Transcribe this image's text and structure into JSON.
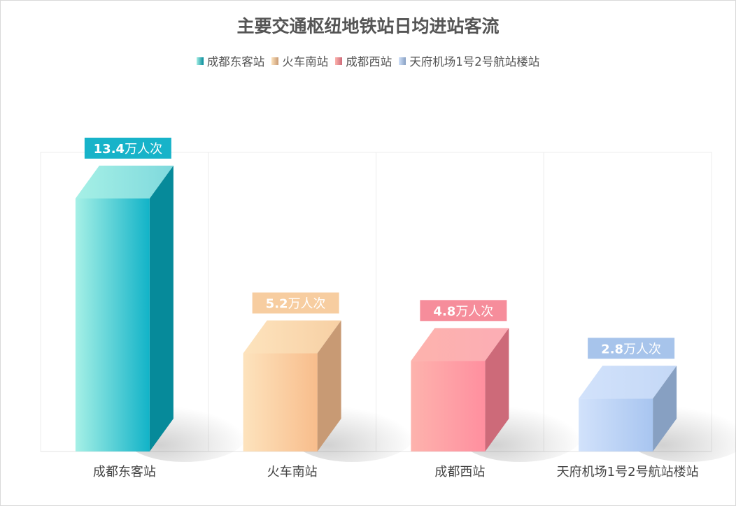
{
  "chart_data": {
    "type": "bar",
    "title": "主要交通枢纽地铁站日均进站客流",
    "categories": [
      "成都东客站",
      "火车南站",
      "成都西站",
      "天府机场1号2号航站楼站"
    ],
    "series": [
      {
        "name": "成都东客站",
        "values": [
          13.4,
          null,
          null,
          null
        ]
      },
      {
        "name": "火车南站",
        "values": [
          null,
          5.2,
          null,
          null
        ]
      },
      {
        "name": "成都西站",
        "values": [
          null,
          null,
          4.8,
          null
        ]
      },
      {
        "name": "天府机场1号2号航站楼站",
        "values": [
          null,
          null,
          null,
          2.8
        ]
      }
    ],
    "values": [
      13.4,
      5.2,
      4.8,
      2.8
    ],
    "value_labels": [
      {
        "number": "13.4",
        "unit": "万人次"
      },
      {
        "number": "5.2",
        "unit": "万人次"
      },
      {
        "number": "4.8",
        "unit": "万人次"
      },
      {
        "number": "2.8",
        "unit": "万人次"
      }
    ],
    "ylim": [
      0,
      13.4
    ],
    "xlabel": "",
    "ylabel": "",
    "grid": "vertical",
    "legend_position": "top-center",
    "bar_style": "3d",
    "colors": [
      {
        "light": "#a6f0e6",
        "main": "#12b3c8",
        "side": "#068a9a",
        "top": "#7fd9dd",
        "label": "#17b3c9"
      },
      {
        "light": "#fde3bd",
        "main": "#f8bd8c",
        "side": "#c89a74",
        "top": "#f7d0a4",
        "label": "#f7cda0"
      },
      {
        "light": "#fdb3ad",
        "main": "#ff8f9f",
        "side": "#cd6a79",
        "top": "#fcadb5",
        "label": "#f68d9b"
      },
      {
        "light": "#d2e2fb",
        "main": "#a8c5f0",
        "side": "#87a0c2",
        "top": "#c4d8f6",
        "label": "#a7c4eb"
      }
    ]
  }
}
